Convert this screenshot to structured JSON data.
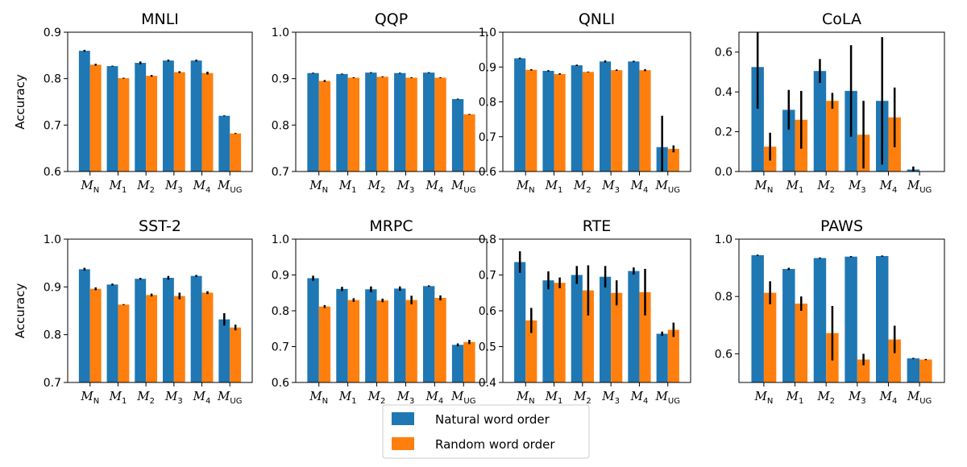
{
  "chart_data": {
    "type": "bar",
    "ylabel": "Accuracy",
    "categories": [
      {
        "base": "M",
        "sub": "N"
      },
      {
        "base": "M",
        "sub": "1"
      },
      {
        "base": "M",
        "sub": "2"
      },
      {
        "base": "M",
        "sub": "3"
      },
      {
        "base": "M",
        "sub": "4"
      },
      {
        "base": "M",
        "sub": "UG"
      }
    ],
    "legend": {
      "placement": "bottom-center",
      "items": [
        {
          "name": "Natural word order",
          "color": "#1f77b4"
        },
        {
          "name": "Random word order",
          "color": "#ff7f0e"
        }
      ]
    },
    "panels": [
      {
        "title": "MNLI",
        "ylim": [
          0.6,
          0.9
        ],
        "yticks": [
          "0.6",
          "0.7",
          "0.8",
          "0.9"
        ],
        "series": [
          {
            "name": "Natural word order",
            "values": [
              0.86,
              0.827,
              0.834,
              0.839,
              0.839,
              0.72
            ],
            "err": [
              0.002,
              0.001,
              0.003,
              0.002,
              0.002,
              0.001
            ]
          },
          {
            "name": "Random word order",
            "values": [
              0.83,
              0.801,
              0.806,
              0.814,
              0.812,
              0.682
            ],
            "err": [
              0.002,
              0.001,
              0.002,
              0.002,
              0.003,
              0.001
            ]
          }
        ]
      },
      {
        "title": "QQP",
        "ylim": [
          0.7,
          1.0
        ],
        "yticks": [
          "0.7",
          "0.8",
          "0.9",
          "1.0"
        ],
        "series": [
          {
            "name": "Natural word order",
            "values": [
              0.912,
              0.91,
              0.913,
              0.912,
              0.913,
              0.856
            ],
            "err": [
              0.001,
              0.001,
              0.001,
              0.001,
              0.001,
              0.001
            ]
          },
          {
            "name": "Random word order",
            "values": [
              0.895,
              0.902,
              0.904,
              0.902,
              0.902,
              0.823
            ],
            "err": [
              0.002,
              0.001,
              0.001,
              0.001,
              0.001,
              0.001
            ]
          }
        ]
      },
      {
        "title": "QNLI",
        "ylim": [
          0.6,
          1.0
        ],
        "yticks": [
          "0.6",
          "0.7",
          "0.8",
          "0.9",
          "1.0"
        ],
        "series": [
          {
            "name": "Natural word order",
            "values": [
              0.925,
              0.889,
              0.905,
              0.916,
              0.916,
              0.67
            ],
            "err": [
              0.002,
              0.002,
              0.002,
              0.003,
              0.002,
              0.09
            ]
          },
          {
            "name": "Random word order",
            "values": [
              0.892,
              0.88,
              0.886,
              0.891,
              0.891,
              0.665
            ],
            "err": [
              0.002,
              0.002,
              0.001,
              0.002,
              0.003,
              0.01
            ]
          }
        ]
      },
      {
        "title": "CoLA",
        "ylim": [
          0.0,
          0.7
        ],
        "yticks": [
          "0.0",
          "0.2",
          "0.4",
          "0.6"
        ],
        "series": [
          {
            "name": "Natural word order",
            "values": [
              0.525,
              0.31,
              0.505,
              0.405,
              0.355,
              0.01
            ],
            "err": [
              0.21,
              0.1,
              0.06,
              0.23,
              0.32,
              0.015
            ]
          },
          {
            "name": "Random word order",
            "values": [
              0.125,
              0.26,
              0.355,
              0.185,
              0.272,
              0.0
            ],
            "err": [
              0.07,
              0.145,
              0.04,
              0.17,
              0.15,
              0.0
            ]
          }
        ]
      },
      {
        "title": "SST-2",
        "ylim": [
          0.7,
          1.0
        ],
        "yticks": [
          "0.7",
          "0.8",
          "0.9",
          "1.0"
        ],
        "series": [
          {
            "name": "Natural word order",
            "values": [
              0.937,
              0.905,
              0.917,
              0.919,
              0.923,
              0.832
            ],
            "err": [
              0.003,
              0.002,
              0.002,
              0.004,
              0.002,
              0.013
            ]
          },
          {
            "name": "Random word order",
            "values": [
              0.896,
              0.863,
              0.883,
              0.881,
              0.888,
              0.815
            ],
            "err": [
              0.003,
              0.001,
              0.003,
              0.007,
              0.003,
              0.006
            ]
          }
        ]
      },
      {
        "title": "MRPC",
        "ylim": [
          0.6,
          1.0
        ],
        "yticks": [
          "0.6",
          "0.7",
          "0.8",
          "0.9",
          "1.0"
        ],
        "series": [
          {
            "name": "Natural word order",
            "values": [
              0.891,
              0.861,
              0.86,
              0.862,
              0.869,
              0.705
            ],
            "err": [
              0.007,
              0.006,
              0.008,
              0.006,
              0.002,
              0.004
            ]
          },
          {
            "name": "Random word order",
            "values": [
              0.812,
              0.83,
              0.829,
              0.83,
              0.836,
              0.713
            ],
            "err": [
              0.004,
              0.005,
              0.005,
              0.012,
              0.007,
              0.006
            ]
          }
        ]
      },
      {
        "title": "RTE",
        "ylim": [
          0.4,
          0.8
        ],
        "yticks": [
          "0.4",
          "0.5",
          "0.6",
          "0.7",
          "0.8"
        ],
        "series": [
          {
            "name": "Natural word order",
            "values": [
              0.736,
              0.685,
              0.7,
              0.695,
              0.711,
              0.536
            ],
            "err": [
              0.03,
              0.025,
              0.025,
              0.03,
              0.01,
              0.006
            ]
          },
          {
            "name": "Random word order",
            "values": [
              0.573,
              0.678,
              0.657,
              0.65,
              0.652,
              0.547
            ],
            "err": [
              0.035,
              0.015,
              0.07,
              0.035,
              0.065,
              0.02
            ]
          }
        ]
      },
      {
        "title": "PAWS",
        "ylim": [
          0.5,
          1.0
        ],
        "yticks": [
          "0.6",
          "0.8",
          "1.0"
        ],
        "series": [
          {
            "name": "Natural word order",
            "values": [
              0.944,
              0.896,
              0.934,
              0.939,
              0.941,
              0.584
            ],
            "err": [
              0.002,
              0.004,
              0.002,
              0.002,
              0.002,
              0.002
            ]
          },
          {
            "name": "Random word order",
            "values": [
              0.813,
              0.775,
              0.672,
              0.58,
              0.65,
              0.58
            ],
            "err": [
              0.04,
              0.025,
              0.095,
              0.02,
              0.048,
              0.002
            ]
          }
        ]
      }
    ]
  }
}
